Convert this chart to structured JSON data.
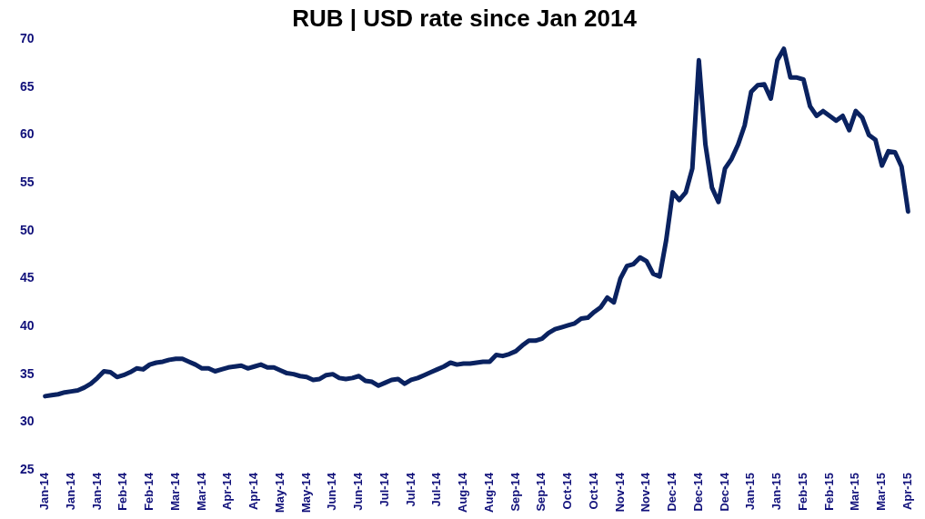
{
  "chart_data": {
    "type": "line",
    "title": "RUB | USD rate since Jan 2014",
    "categories": [
      "Jan-14",
      null,
      null,
      null,
      "Jan-14",
      null,
      null,
      null,
      "Jan-14",
      null,
      null,
      null,
      "Feb-14",
      null,
      null,
      null,
      "Feb-14",
      null,
      null,
      null,
      "Mar-14",
      null,
      null,
      null,
      "Mar-14",
      null,
      null,
      null,
      "Apr-14",
      null,
      null,
      null,
      "Apr-14",
      null,
      null,
      null,
      "May-14",
      null,
      null,
      null,
      "May-14",
      null,
      null,
      null,
      "Jun-14",
      null,
      null,
      null,
      "Jun-14",
      null,
      null,
      null,
      "Jul-14",
      null,
      null,
      null,
      "Jul-14",
      null,
      null,
      null,
      "Jul-14",
      null,
      null,
      null,
      "Aug-14",
      null,
      null,
      null,
      "Aug-14",
      null,
      null,
      null,
      "Sep-14",
      null,
      null,
      null,
      "Sep-14",
      null,
      null,
      null,
      "Oct-14",
      null,
      null,
      null,
      "Oct-14",
      null,
      null,
      null,
      "Nov-14",
      null,
      null,
      null,
      "Nov-14",
      null,
      null,
      null,
      "Dec-14",
      null,
      null,
      null,
      "Dec-14",
      null,
      null,
      null,
      "Dec-14",
      null,
      null,
      null,
      "Jan-15",
      null,
      null,
      null,
      "Jan-15",
      null,
      null,
      null,
      "Feb-15",
      null,
      null,
      null,
      "Feb-15",
      null,
      null,
      null,
      "Mar-15",
      null,
      null,
      null,
      "Mar-15",
      null,
      null,
      null,
      "Apr-15"
    ],
    "series": [
      {
        "color": "#0a2260",
        "values": [
          32.7,
          32.8,
          32.9,
          33.1,
          33.2,
          33.3,
          33.6,
          34.0,
          34.6,
          35.3,
          35.2,
          34.7,
          34.9,
          35.2,
          35.6,
          35.5,
          36.0,
          36.2,
          36.3,
          36.5,
          36.6,
          36.6,
          36.3,
          36.0,
          35.6,
          35.6,
          35.3,
          35.5,
          35.7,
          35.8,
          35.9,
          35.6,
          35.8,
          36.0,
          35.7,
          35.7,
          35.4,
          35.1,
          35.0,
          34.8,
          34.7,
          34.4,
          34.5,
          34.9,
          35.0,
          34.6,
          34.5,
          34.6,
          34.8,
          34.3,
          34.2,
          33.8,
          34.1,
          34.4,
          34.5,
          34.0,
          34.4,
          34.6,
          34.9,
          35.2,
          35.5,
          35.8,
          36.2,
          36.0,
          36.1,
          36.1,
          36.2,
          36.3,
          36.3,
          37.0,
          36.9,
          37.1,
          37.4,
          38.0,
          38.5,
          38.5,
          38.7,
          39.3,
          39.7,
          39.9,
          40.1,
          40.3,
          40.8,
          40.9,
          41.5,
          42.0,
          43.0,
          42.5,
          45.0,
          46.3,
          46.5,
          47.2,
          46.8,
          45.5,
          45.2,
          49.0,
          54.0,
          53.2,
          54.0,
          56.5,
          67.8,
          59.0,
          54.5,
          53.0,
          56.5,
          57.5,
          59.0,
          61.0,
          64.5,
          65.2,
          65.3,
          63.8,
          67.8,
          69.0,
          66.0,
          66.0,
          65.8,
          63.0,
          62.0,
          62.5,
          62.0,
          61.5,
          62.0,
          60.5,
          62.5,
          61.8,
          60.0,
          59.5,
          56.8,
          58.3,
          58.2,
          56.7,
          52.0
        ]
      }
    ],
    "ylim": [
      25,
      70
    ],
    "yticks": [
      25,
      30,
      35,
      40,
      45,
      50,
      55,
      60,
      65,
      70
    ],
    "grid": false,
    "legend": false,
    "marker": "none",
    "line_style": "solid"
  }
}
